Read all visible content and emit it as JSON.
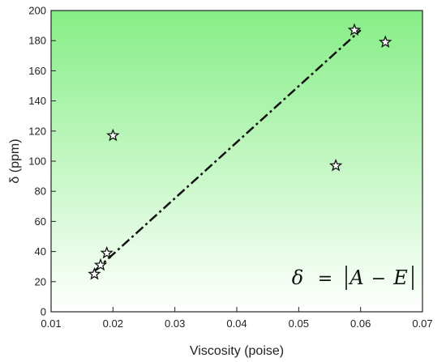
{
  "chart_data": {
    "type": "scatter",
    "title": "",
    "xlabel": "Viscosity (poise)",
    "ylabel": "δ (ppm)",
    "xlim": [
      0.01,
      0.07
    ],
    "ylim": [
      0,
      200
    ],
    "xticks": [
      0.01,
      0.02,
      0.03,
      0.04,
      0.05,
      0.06,
      0.07
    ],
    "yticks": [
      0,
      20,
      40,
      60,
      80,
      100,
      120,
      140,
      160,
      180,
      200
    ],
    "xtick_labels": [
      "0.01",
      "0.02",
      "0.03",
      "0.04",
      "0.05",
      "0.06",
      "0.07"
    ],
    "ytick_labels": [
      "0",
      "20",
      "40",
      "60",
      "80",
      "100",
      "120",
      "140",
      "160",
      "180",
      "200"
    ],
    "grid": false,
    "marker": "star",
    "background": "vertical gradient, light green at top to white at bottom",
    "background_colors": [
      "#86ee86",
      "#ffffff"
    ],
    "points": [
      {
        "x": 0.017,
        "y": 25
      },
      {
        "x": 0.018,
        "y": 31
      },
      {
        "x": 0.019,
        "y": 39
      },
      {
        "x": 0.02,
        "y": 117
      },
      {
        "x": 0.056,
        "y": 97
      },
      {
        "x": 0.059,
        "y": 187
      },
      {
        "x": 0.064,
        "y": 179
      }
    ],
    "fit_line": {
      "style": "dash-dot",
      "color": "#111111",
      "start": {
        "x": 0.017,
        "y": 27
      },
      "end": {
        "x": 0.06,
        "y": 187
      }
    },
    "annotation": {
      "symbol": "δ",
      "equals": "=",
      "a": "A",
      "minus": "−",
      "e": "E"
    }
  }
}
